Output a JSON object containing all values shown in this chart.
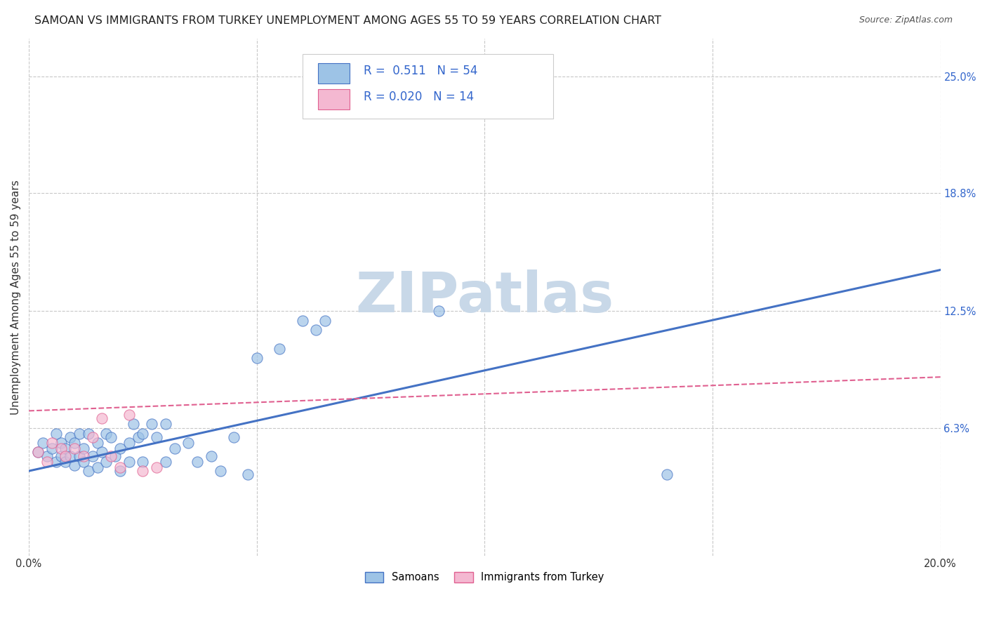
{
  "title": "SAMOAN VS IMMIGRANTS FROM TURKEY UNEMPLOYMENT AMONG AGES 55 TO 59 YEARS CORRELATION CHART",
  "source": "Source: ZipAtlas.com",
  "ylabel": "Unemployment Among Ages 55 to 59 years",
  "xlim": [
    0.0,
    0.2
  ],
  "ylim": [
    -0.005,
    0.27
  ],
  "xticks": [
    0.0,
    0.05,
    0.1,
    0.15,
    0.2
  ],
  "ytick_right_labels": [
    "25.0%",
    "18.8%",
    "12.5%",
    "6.3%"
  ],
  "ytick_right_values": [
    0.25,
    0.188,
    0.125,
    0.063
  ],
  "background_color": "#ffffff",
  "watermark": "ZIPatlas",
  "blue_scatter": [
    [
      0.002,
      0.05
    ],
    [
      0.003,
      0.055
    ],
    [
      0.004,
      0.048
    ],
    [
      0.005,
      0.052
    ],
    [
      0.006,
      0.045
    ],
    [
      0.006,
      0.06
    ],
    [
      0.007,
      0.048
    ],
    [
      0.007,
      0.055
    ],
    [
      0.008,
      0.052
    ],
    [
      0.008,
      0.045
    ],
    [
      0.009,
      0.058
    ],
    [
      0.009,
      0.048
    ],
    [
      0.01,
      0.055
    ],
    [
      0.01,
      0.043
    ],
    [
      0.011,
      0.06
    ],
    [
      0.011,
      0.048
    ],
    [
      0.012,
      0.045
    ],
    [
      0.012,
      0.052
    ],
    [
      0.013,
      0.04
    ],
    [
      0.013,
      0.06
    ],
    [
      0.014,
      0.048
    ],
    [
      0.015,
      0.055
    ],
    [
      0.015,
      0.042
    ],
    [
      0.016,
      0.05
    ],
    [
      0.017,
      0.06
    ],
    [
      0.017,
      0.045
    ],
    [
      0.018,
      0.058
    ],
    [
      0.019,
      0.048
    ],
    [
      0.02,
      0.052
    ],
    [
      0.02,
      0.04
    ],
    [
      0.022,
      0.055
    ],
    [
      0.022,
      0.045
    ],
    [
      0.023,
      0.065
    ],
    [
      0.024,
      0.058
    ],
    [
      0.025,
      0.045
    ],
    [
      0.025,
      0.06
    ],
    [
      0.027,
      0.065
    ],
    [
      0.028,
      0.058
    ],
    [
      0.03,
      0.065
    ],
    [
      0.03,
      0.045
    ],
    [
      0.032,
      0.052
    ],
    [
      0.035,
      0.055
    ],
    [
      0.037,
      0.045
    ],
    [
      0.04,
      0.048
    ],
    [
      0.042,
      0.04
    ],
    [
      0.045,
      0.058
    ],
    [
      0.048,
      0.038
    ],
    [
      0.05,
      0.1
    ],
    [
      0.055,
      0.105
    ],
    [
      0.06,
      0.12
    ],
    [
      0.063,
      0.115
    ],
    [
      0.065,
      0.12
    ],
    [
      0.09,
      0.125
    ],
    [
      0.14,
      0.038
    ]
  ],
  "pink_scatter": [
    [
      0.002,
      0.05
    ],
    [
      0.004,
      0.045
    ],
    [
      0.005,
      0.055
    ],
    [
      0.007,
      0.052
    ],
    [
      0.008,
      0.048
    ],
    [
      0.01,
      0.052
    ],
    [
      0.012,
      0.048
    ],
    [
      0.014,
      0.058
    ],
    [
      0.016,
      0.068
    ],
    [
      0.018,
      0.048
    ],
    [
      0.02,
      0.042
    ],
    [
      0.022,
      0.07
    ],
    [
      0.025,
      0.04
    ],
    [
      0.028,
      0.042
    ]
  ],
  "blue_line_x": [
    0.0,
    0.2
  ],
  "blue_line_y": [
    0.04,
    0.147
  ],
  "pink_line_x": [
    0.0,
    0.2
  ],
  "pink_line_y": [
    0.072,
    0.09
  ],
  "blue_color": "#4472c4",
  "blue_dot_facecolor": "#9dc3e6",
  "pink_color": "#e06090",
  "pink_dot_facecolor": "#f4b8d1",
  "legend_r_blue": "0.511",
  "legend_n_blue": "54",
  "legend_r_pink": "0.020",
  "legend_n_pink": "14",
  "label_samoans": "Samoans",
  "label_turkey": "Immigrants from Turkey",
  "grid_color": "#c8c8c8",
  "title_fontsize": 11.5,
  "axis_label_fontsize": 11,
  "tick_fontsize": 10.5,
  "watermark_color": "#c8d8e8",
  "watermark_fontsize": 58
}
